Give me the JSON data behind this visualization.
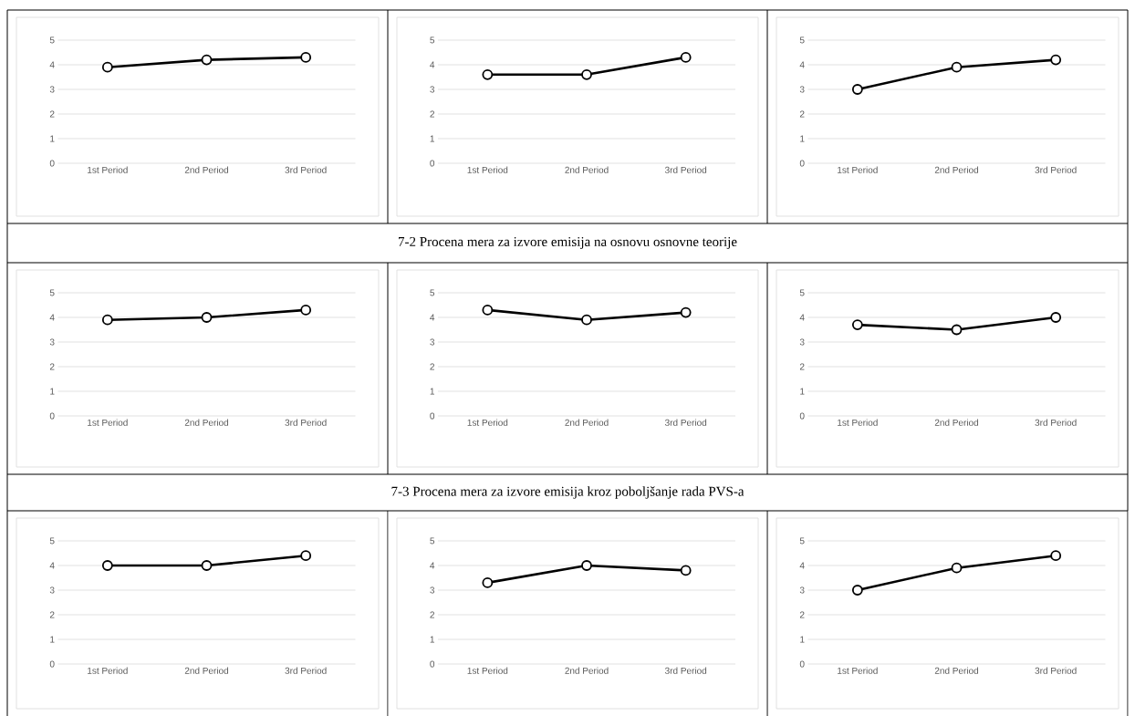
{
  "chart_data": [
    {
      "type": "line",
      "categories": [
        "1st Period",
        "2nd Period",
        "3rd Period"
      ],
      "values": [
        3.9,
        4.2,
        4.3
      ],
      "color": "#000000",
      "ylim": [
        0,
        5
      ],
      "yticks": [
        0,
        1,
        2,
        3,
        4,
        5
      ],
      "grid": "y",
      "marker": "circle"
    },
    {
      "type": "line",
      "categories": [
        "1st Period",
        "2nd Period",
        "3rd Period"
      ],
      "values": [
        3.6,
        3.6,
        4.3
      ],
      "color": "#000000",
      "ylim": [
        0,
        5
      ],
      "yticks": [
        0,
        1,
        2,
        3,
        4,
        5
      ],
      "grid": "y",
      "marker": "circle"
    },
    {
      "type": "line",
      "categories": [
        "1st Period",
        "2nd Period",
        "3rd Period"
      ],
      "values": [
        3.0,
        3.9,
        4.2
      ],
      "color": "#000000",
      "ylim": [
        0,
        5
      ],
      "yticks": [
        0,
        1,
        2,
        3,
        4,
        5
      ],
      "grid": "y",
      "marker": "circle"
    },
    {
      "type": "other",
      "title": "7-2 Procena mera za izvore emisija na osnovu osnovne teorije"
    },
    {
      "type": "line",
      "categories": [
        "1st Period",
        "2nd Period",
        "3rd Period"
      ],
      "values": [
        3.9,
        4.0,
        4.3
      ],
      "color": "#000000",
      "ylim": [
        0,
        5
      ],
      "yticks": [
        0,
        1,
        2,
        3,
        4,
        5
      ],
      "grid": "y",
      "marker": "circle"
    },
    {
      "type": "line",
      "categories": [
        "1st Period",
        "2nd Period",
        "3rd Period"
      ],
      "values": [
        4.3,
        3.9,
        4.2
      ],
      "color": "#000000",
      "ylim": [
        0,
        5
      ],
      "yticks": [
        0,
        1,
        2,
        3,
        4,
        5
      ],
      "grid": "y",
      "marker": "circle"
    },
    {
      "type": "line",
      "categories": [
        "1st Period",
        "2nd Period",
        "3rd Period"
      ],
      "values": [
        3.7,
        3.5,
        4.0
      ],
      "color": "#000000",
      "ylim": [
        0,
        5
      ],
      "yticks": [
        0,
        1,
        2,
        3,
        4,
        5
      ],
      "grid": "y",
      "marker": "circle"
    },
    {
      "type": "other",
      "title": "7-3 Procena mera za izvore emisija kroz poboljšanje rada PVS-a"
    },
    {
      "type": "line",
      "categories": [
        "1st Period",
        "2nd Period",
        "3rd Period"
      ],
      "values": [
        4.0,
        4.0,
        4.4
      ],
      "color": "#000000",
      "ylim": [
        0,
        5
      ],
      "yticks": [
        0,
        1,
        2,
        3,
        4,
        5
      ],
      "grid": "y",
      "marker": "circle"
    },
    {
      "type": "line",
      "categories": [
        "1st Period",
        "2nd Period",
        "3rd Period"
      ],
      "values": [
        3.3,
        4.0,
        3.8
      ],
      "color": "#000000",
      "ylim": [
        0,
        5
      ],
      "yticks": [
        0,
        1,
        2,
        3,
        4,
        5
      ],
      "grid": "y",
      "marker": "circle"
    },
    {
      "type": "line",
      "categories": [
        "1st Period",
        "2nd Period",
        "3rd Period"
      ],
      "values": [
        3.0,
        3.9,
        4.4
      ],
      "color": "#000000",
      "ylim": [
        0,
        5
      ],
      "yticks": [
        0,
        1,
        2,
        3,
        4,
        5
      ],
      "grid": "y",
      "marker": "circle"
    }
  ]
}
